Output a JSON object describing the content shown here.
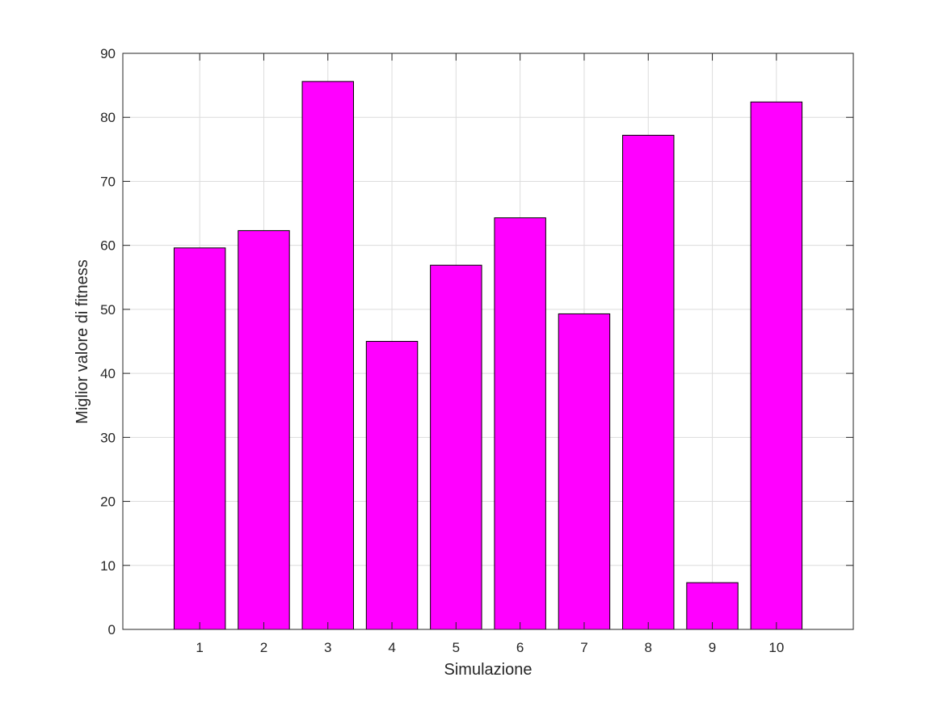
{
  "chart_data": {
    "type": "bar",
    "title": "",
    "xlabel": "Simulazione",
    "ylabel": "Miglior valore di fitness",
    "categories": [
      "1",
      "2",
      "3",
      "4",
      "5",
      "6",
      "7",
      "8",
      "9",
      "10"
    ],
    "values": [
      59.6,
      62.3,
      85.6,
      45.0,
      56.9,
      64.3,
      49.3,
      77.2,
      7.3,
      82.4
    ],
    "xlim": [
      -0.2,
      11.2
    ],
    "ylim": [
      0,
      90
    ],
    "yticks": [
      0,
      10,
      20,
      30,
      40,
      50,
      60,
      70,
      80,
      90
    ],
    "grid": true,
    "legend": "none",
    "colors": {
      "bar_fill": "#ff00ff",
      "bar_edge": "#000000",
      "axis": "#262626",
      "grid": "#dcdcdc"
    }
  }
}
